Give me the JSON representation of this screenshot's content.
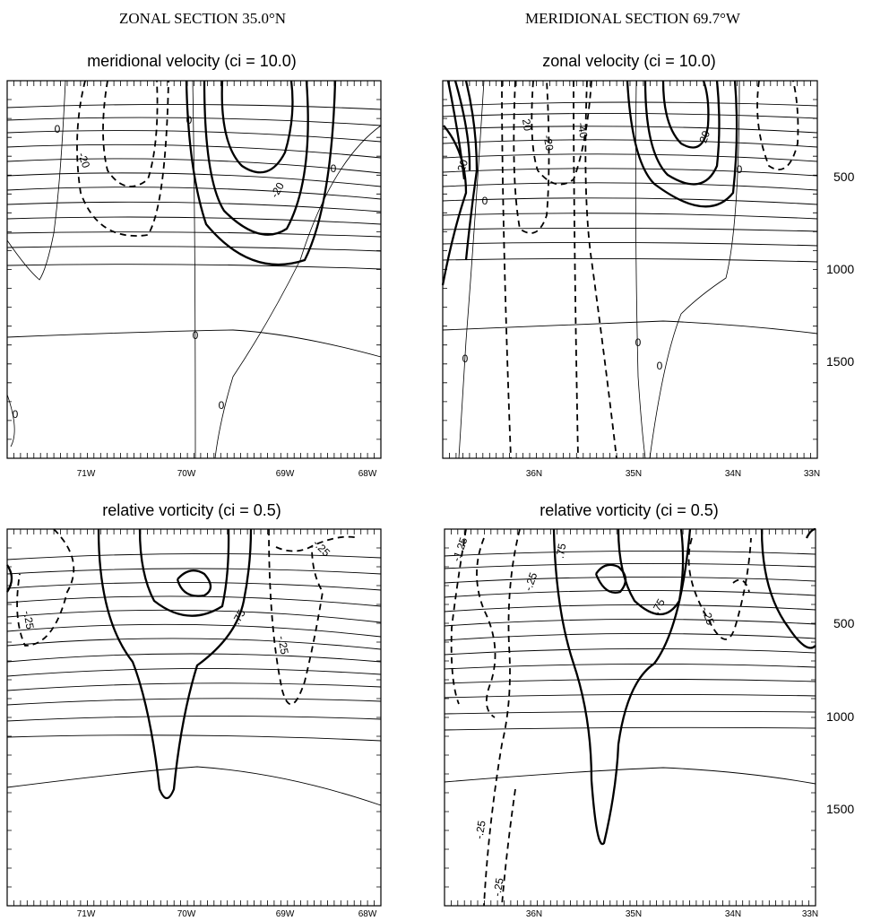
{
  "headers": {
    "left": "ZONAL SECTION   35.0°N",
    "right": "MERIDIONAL SECTION   69.7°W"
  },
  "depth_labels": [
    "500",
    "1000",
    "1500"
  ],
  "panels": [
    {
      "title": "meridional velocity   (ci = 10.0)",
      "x_ticks": [
        "71W",
        "70W",
        "69W",
        "68W"
      ],
      "contour_labels": [
        "0",
        "-20",
        "0",
        "-20",
        "0",
        "0",
        "0",
        "0"
      ]
    },
    {
      "title": "zonal velocity   (ci = 10.0)",
      "x_ticks": [
        "36N",
        "35N",
        "34N",
        "33N"
      ],
      "contour_labels": [
        "-40",
        "-20",
        "20",
        "20",
        "0",
        "0",
        "0",
        "0",
        "0",
        "20"
      ]
    },
    {
      "title": "relative vorticity   (ci = 0.5)",
      "x_ticks": [
        "71W",
        "70W",
        "69W",
        "68W"
      ],
      "contour_labels": [
        "-.25",
        ".75",
        "-.25",
        "-.25"
      ]
    },
    {
      "title": "relative vorticity   (ci = 0.5)",
      "x_ticks": [
        "36N",
        "35N",
        "34N",
        "33N"
      ],
      "contour_labels": [
        "-1.25",
        ".75",
        "-.25",
        ".75",
        "-.25",
        "-.25",
        "-.25"
      ]
    }
  ]
}
